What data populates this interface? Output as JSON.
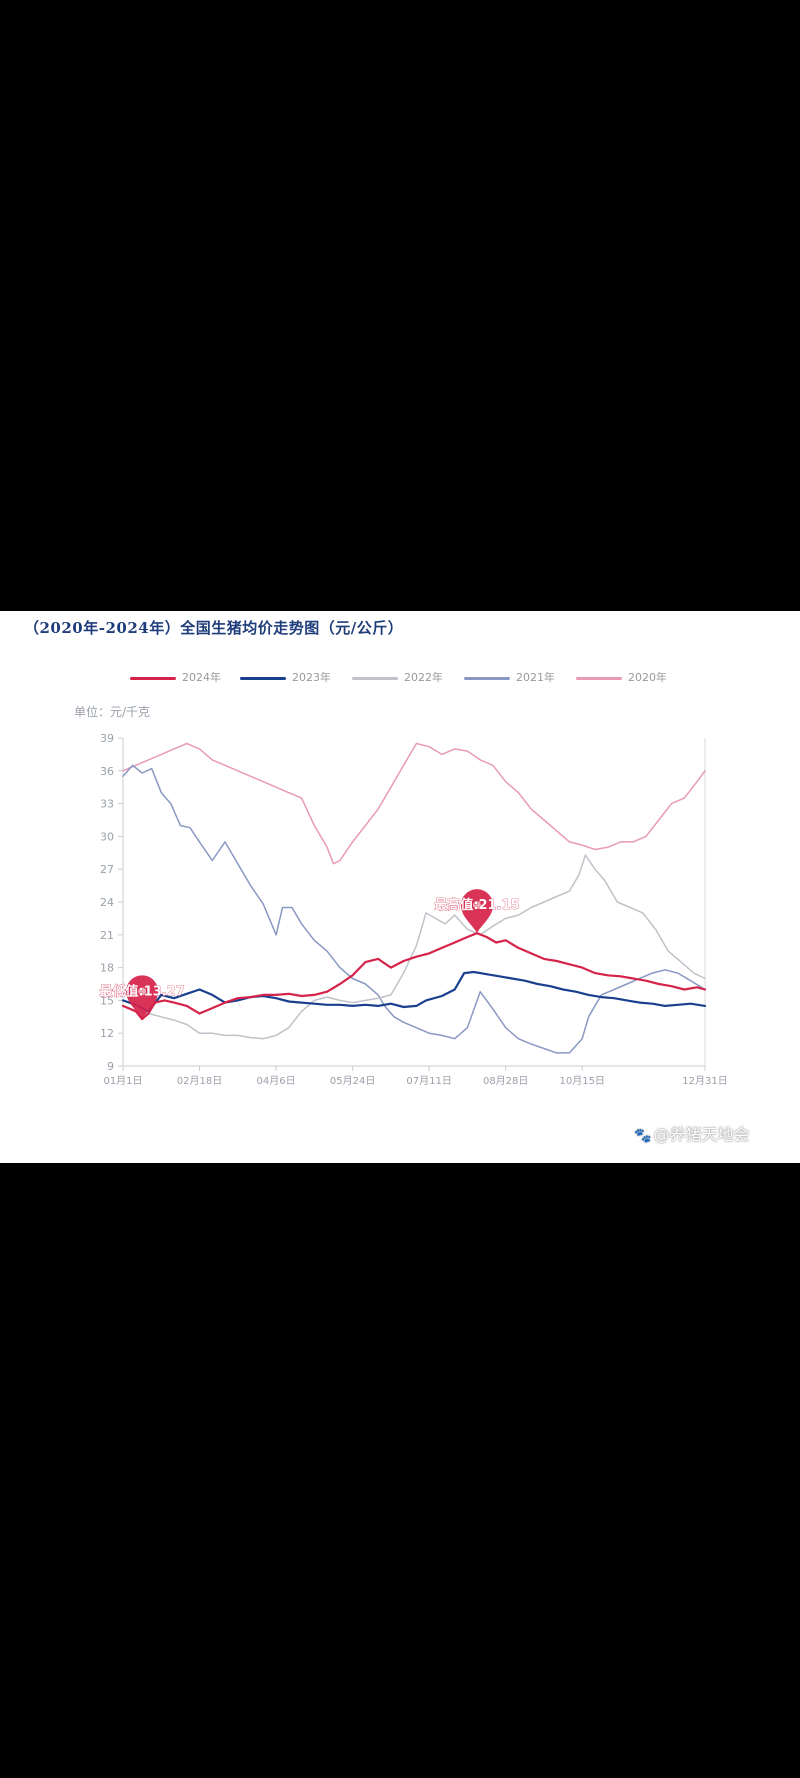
{
  "title": "（2020年-2024年）全国生猪均价走势图（元/公斤）",
  "unit_label": "单位：元/千克",
  "watermark": "@养猪天地会",
  "chart_data": {
    "type": "line",
    "title": "（2020年-2024年）全国生猪均价走势图（元/公斤）",
    "ylabel": "单位：元/千克",
    "ylim": [
      9,
      39
    ],
    "yticks": [
      9,
      12,
      15,
      18,
      21,
      24,
      27,
      30,
      33,
      36,
      39
    ],
    "x_day_range": [
      0,
      365
    ],
    "xticks": [
      {
        "day": 0,
        "label": "01月1日"
      },
      {
        "day": 48,
        "label": "02月18日"
      },
      {
        "day": 96,
        "label": "04月6日"
      },
      {
        "day": 144,
        "label": "05月24日"
      },
      {
        "day": 192,
        "label": "07月11日"
      },
      {
        "day": 240,
        "label": "08月28日"
      },
      {
        "day": 288,
        "label": "10月15日"
      },
      {
        "day": 365,
        "label": "12月31日"
      }
    ],
    "series": [
      {
        "name": "2024年",
        "color": "#d6234a",
        "width": 2.2,
        "days": [
          0,
          8,
          12,
          16,
          20,
          26,
          32,
          40,
          48,
          56,
          64,
          72,
          80,
          88,
          96,
          104,
          112,
          120,
          128,
          136,
          144,
          152,
          160,
          168,
          176,
          184,
          192,
          200,
          208,
          216,
          222,
          228,
          234,
          240,
          248,
          256,
          264,
          272,
          280,
          288,
          296,
          304,
          312,
          320,
          328,
          336,
          344,
          352,
          360,
          365
        ],
        "values": [
          14.5,
          14.0,
          13.3,
          13.8,
          14.8,
          15.0,
          14.8,
          14.5,
          13.8,
          14.3,
          14.8,
          15.2,
          15.3,
          15.5,
          15.5,
          15.6,
          15.4,
          15.5,
          15.8,
          16.5,
          17.3,
          18.5,
          18.8,
          18.0,
          18.6,
          19.0,
          19.3,
          19.8,
          20.3,
          20.8,
          21.15,
          20.8,
          20.3,
          20.5,
          19.8,
          19.3,
          18.8,
          18.6,
          18.3,
          18.0,
          17.5,
          17.3,
          17.2,
          17.0,
          16.8,
          16.5,
          16.3,
          16.0,
          16.2,
          16.0
        ]
      },
      {
        "name": "2023年",
        "color": "#1a3f8f",
        "width": 2.2,
        "days": [
          0,
          8,
          16,
          24,
          32,
          40,
          48,
          56,
          64,
          72,
          80,
          88,
          96,
          104,
          112,
          120,
          128,
          136,
          144,
          152,
          160,
          168,
          176,
          184,
          190,
          200,
          208,
          214,
          220,
          228,
          236,
          244,
          252,
          260,
          268,
          276,
          284,
          292,
          300,
          308,
          316,
          324,
          332,
          340,
          348,
          356,
          365
        ],
        "values": [
          15.0,
          14.6,
          14.0,
          15.5,
          15.2,
          15.6,
          16.0,
          15.5,
          14.8,
          15.0,
          15.3,
          15.4,
          15.2,
          14.9,
          14.8,
          14.7,
          14.6,
          14.6,
          14.5,
          14.6,
          14.5,
          14.7,
          14.4,
          14.5,
          15.0,
          15.4,
          16.0,
          17.5,
          17.6,
          17.4,
          17.2,
          17.0,
          16.8,
          16.5,
          16.3,
          16.0,
          15.8,
          15.5,
          15.3,
          15.2,
          15.0,
          14.8,
          14.7,
          14.5,
          14.6,
          14.7,
          14.5
        ]
      },
      {
        "name": "2022年",
        "color": "#bfc2c8",
        "width": 1.5,
        "days": [
          0,
          8,
          16,
          24,
          32,
          40,
          48,
          56,
          64,
          72,
          80,
          88,
          96,
          104,
          112,
          120,
          128,
          136,
          144,
          152,
          160,
          168,
          176,
          184,
          190,
          196,
          202,
          208,
          216,
          224,
          232,
          240,
          248,
          256,
          264,
          272,
          280,
          286,
          290,
          296,
          302,
          310,
          318,
          326,
          334,
          342,
          350,
          358,
          365
        ],
        "values": [
          14.5,
          14.0,
          13.8,
          13.5,
          13.2,
          12.8,
          12.0,
          12.0,
          11.8,
          11.8,
          11.6,
          11.5,
          11.8,
          12.5,
          14.0,
          15.0,
          15.3,
          15.0,
          14.8,
          15.0,
          15.2,
          15.5,
          17.5,
          20.0,
          23.0,
          22.5,
          22.0,
          22.8,
          21.5,
          21.0,
          21.8,
          22.5,
          22.8,
          23.5,
          24.0,
          24.5,
          25.0,
          26.5,
          28.3,
          27.0,
          26.0,
          24.0,
          23.5,
          23.0,
          21.5,
          19.5,
          18.5,
          17.5,
          17.0
        ]
      },
      {
        "name": "2021年",
        "color": "#8a99c4",
        "width": 1.5,
        "days": [
          0,
          6,
          12,
          18,
          24,
          30,
          36,
          42,
          48,
          56,
          64,
          72,
          80,
          88,
          96,
          100,
          106,
          112,
          120,
          128,
          136,
          144,
          152,
          160,
          164,
          170,
          176,
          184,
          192,
          200,
          208,
          216,
          224,
          232,
          240,
          248,
          256,
          264,
          272,
          280,
          288,
          292,
          300,
          308,
          316,
          324,
          332,
          340,
          348,
          356,
          365
        ],
        "values": [
          35.5,
          36.5,
          35.8,
          36.2,
          34.0,
          33.0,
          31.0,
          30.8,
          29.5,
          27.8,
          29.5,
          27.5,
          25.5,
          23.8,
          21.0,
          23.5,
          23.5,
          22.0,
          20.5,
          19.5,
          18.0,
          17.0,
          16.5,
          15.5,
          14.5,
          13.5,
          13.0,
          12.5,
          12.0,
          11.8,
          11.5,
          12.5,
          15.8,
          14.2,
          12.5,
          11.5,
          11.0,
          10.6,
          10.2,
          10.2,
          11.5,
          13.5,
          15.5,
          16.0,
          16.5,
          17.0,
          17.5,
          17.8,
          17.5,
          16.8,
          16.0
        ]
      },
      {
        "name": "2020年",
        "color": "#e89ab8",
        "width": 1.5,
        "days": [
          0,
          8,
          16,
          24,
          32,
          40,
          48,
          56,
          64,
          72,
          80,
          88,
          96,
          104,
          112,
          120,
          128,
          132,
          136,
          144,
          152,
          160,
          168,
          176,
          184,
          192,
          200,
          208,
          216,
          224,
          232,
          240,
          248,
          256,
          264,
          272,
          280,
          288,
          296,
          304,
          312,
          320,
          328,
          336,
          344,
          352,
          360,
          365
        ],
        "values": [
          36.0,
          36.5,
          37.0,
          37.5,
          38.0,
          38.5,
          38.0,
          37.0,
          36.5,
          36.0,
          35.5,
          35.0,
          34.5,
          34.0,
          33.5,
          31.0,
          29.0,
          27.5,
          27.8,
          29.5,
          31.0,
          32.5,
          34.5,
          36.5,
          38.5,
          38.2,
          37.5,
          38.0,
          37.8,
          37.0,
          36.5,
          35.0,
          34.0,
          32.5,
          31.5,
          30.5,
          29.5,
          29.2,
          28.8,
          29.0,
          29.5,
          29.5,
          30.0,
          31.5,
          33.0,
          33.5,
          35.0,
          36.0
        ]
      }
    ],
    "annotations": [
      {
        "label": "最低值:13.27",
        "day": 12,
        "value": 13.27,
        "color": "#d6234a"
      },
      {
        "label": "最高值:21.15",
        "day": 222,
        "value": 21.15,
        "color": "#d6234a"
      }
    ]
  }
}
